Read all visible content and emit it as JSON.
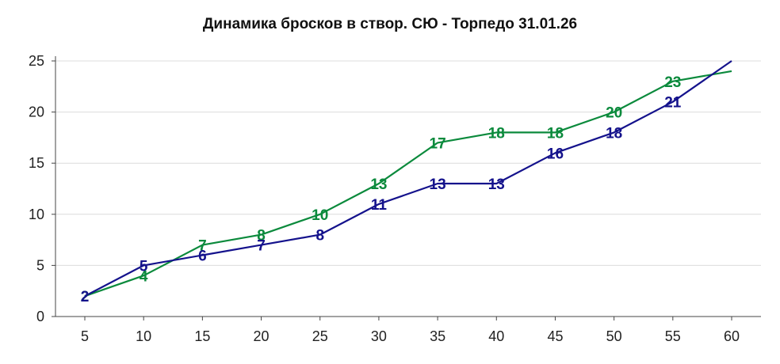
{
  "chart_data": {
    "type": "line",
    "title": "Динамика бросков в створ. СЮ - Торпедо 31.01.26",
    "xlabel": "",
    "ylabel": "",
    "x": [
      5,
      10,
      15,
      20,
      25,
      30,
      35,
      40,
      45,
      50,
      55,
      60
    ],
    "x_tick_labels": [
      "5",
      "10",
      "15",
      "20",
      "25",
      "30",
      "35",
      "40",
      "45",
      "50",
      "55",
      "60"
    ],
    "y_tick_labels": [
      "0",
      "5",
      "10",
      "15",
      "20",
      "25"
    ],
    "ylim": [
      0,
      25
    ],
    "grid": true,
    "legend": "none",
    "series": [
      {
        "color": "#0b8a3c",
        "values": [
          2,
          4,
          7,
          8,
          10,
          13,
          17,
          18,
          18,
          20,
          23,
          24
        ],
        "data_labels": [
          "2",
          "4",
          "7",
          "8",
          "10",
          "13",
          "17",
          "18",
          "18",
          "20",
          "23",
          ""
        ]
      },
      {
        "color": "#14128c",
        "values": [
          2,
          5,
          6,
          7,
          8,
          11,
          13,
          13,
          16,
          18,
          21,
          25
        ],
        "data_labels": [
          "2",
          "5",
          "6",
          "7",
          "8",
          "11",
          "13",
          "13",
          "16",
          "18",
          "21",
          ""
        ]
      }
    ]
  }
}
